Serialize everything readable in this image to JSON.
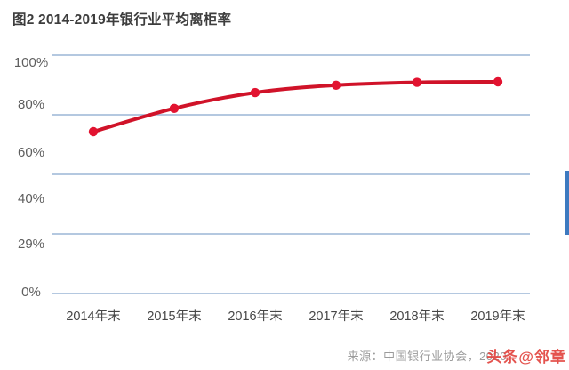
{
  "chart_data": {
    "type": "line",
    "title": "图2 2014-2019年银行业平均离柜率",
    "categories": [
      "2014年末",
      "2015年末",
      "2016年末",
      "2017年末",
      "2018年末",
      "2019年末"
    ],
    "values": [
      67.9,
      77.7,
      84.3,
      87.4,
      88.6,
      88.8
    ],
    "y_tick_labels": [
      "100%",
      "80%",
      "60%",
      "40%",
      "29%",
      "0%"
    ],
    "ylim": [
      0,
      100
    ],
    "xlabel": "",
    "ylabel": "",
    "grid": true,
    "legend": false,
    "colors": {
      "line": "#d01329",
      "point": "#e21330",
      "gridline": "#9cb6d6"
    }
  },
  "source": {
    "text": "来源：中国银行业协会，2020"
  },
  "watermark": {
    "text": "头条@邻章",
    "color": "#e24540"
  }
}
